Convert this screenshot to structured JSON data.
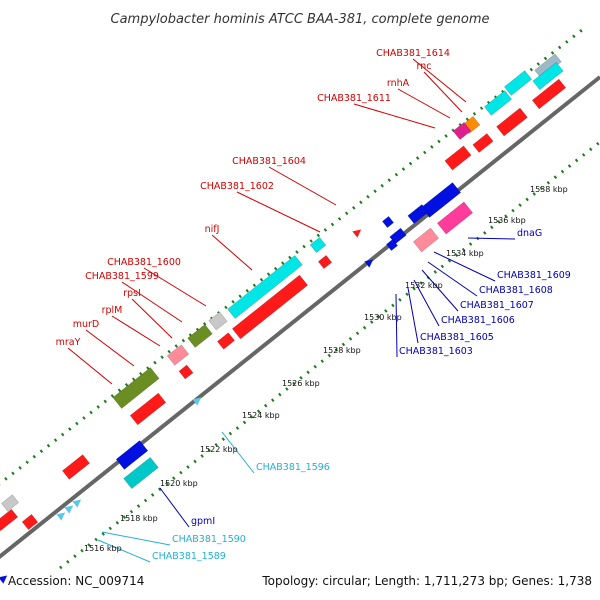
{
  "title": "Campylobacter hominis ATCC BAA-381, complete genome",
  "footer": {
    "accession": "Accession: NC_009714",
    "summary": "Topology: circular; Length: 1,711,273 bp; Genes: 1,738"
  },
  "colors": {
    "red_label": "#d40000",
    "blue_label": "#0000b4",
    "cyan_label": "#22b0d8",
    "tick_green": "#1e7a1e",
    "backbone": "#666666"
  },
  "ticks": [
    {
      "label": "1516 kbp"
    },
    {
      "label": "1518 kbp"
    },
    {
      "label": "1520 kbp"
    },
    {
      "label": "1522 kbp"
    },
    {
      "label": "1524 kbp"
    },
    {
      "label": "1526 kbp"
    },
    {
      "label": "1528 kbp"
    },
    {
      "label": "1530 kbp"
    },
    {
      "label": "1532 kbp"
    },
    {
      "label": "1534 kbp"
    },
    {
      "label": "1536 kbp"
    },
    {
      "label": "1538 kbp"
    }
  ],
  "labels": {
    "red": [
      "CHAB381_1614",
      "rnc",
      "rnhA",
      "CHAB381_1611",
      "CHAB381_1604",
      "CHAB381_1602",
      "nifJ",
      "CHAB381_1600",
      "CHAB381_1599",
      "rpsI",
      "rplM",
      "murD",
      "mraY"
    ],
    "blue": [
      "dnaG",
      "CHAB381_1609",
      "CHAB381_1608",
      "CHAB381_1607",
      "CHAB381_1606",
      "CHAB381_1605",
      "CHAB381_1603",
      "gpmI"
    ],
    "cyan": [
      "CHAB381_1596",
      "CHAB381_1590",
      "CHAB381_1589"
    ]
  }
}
